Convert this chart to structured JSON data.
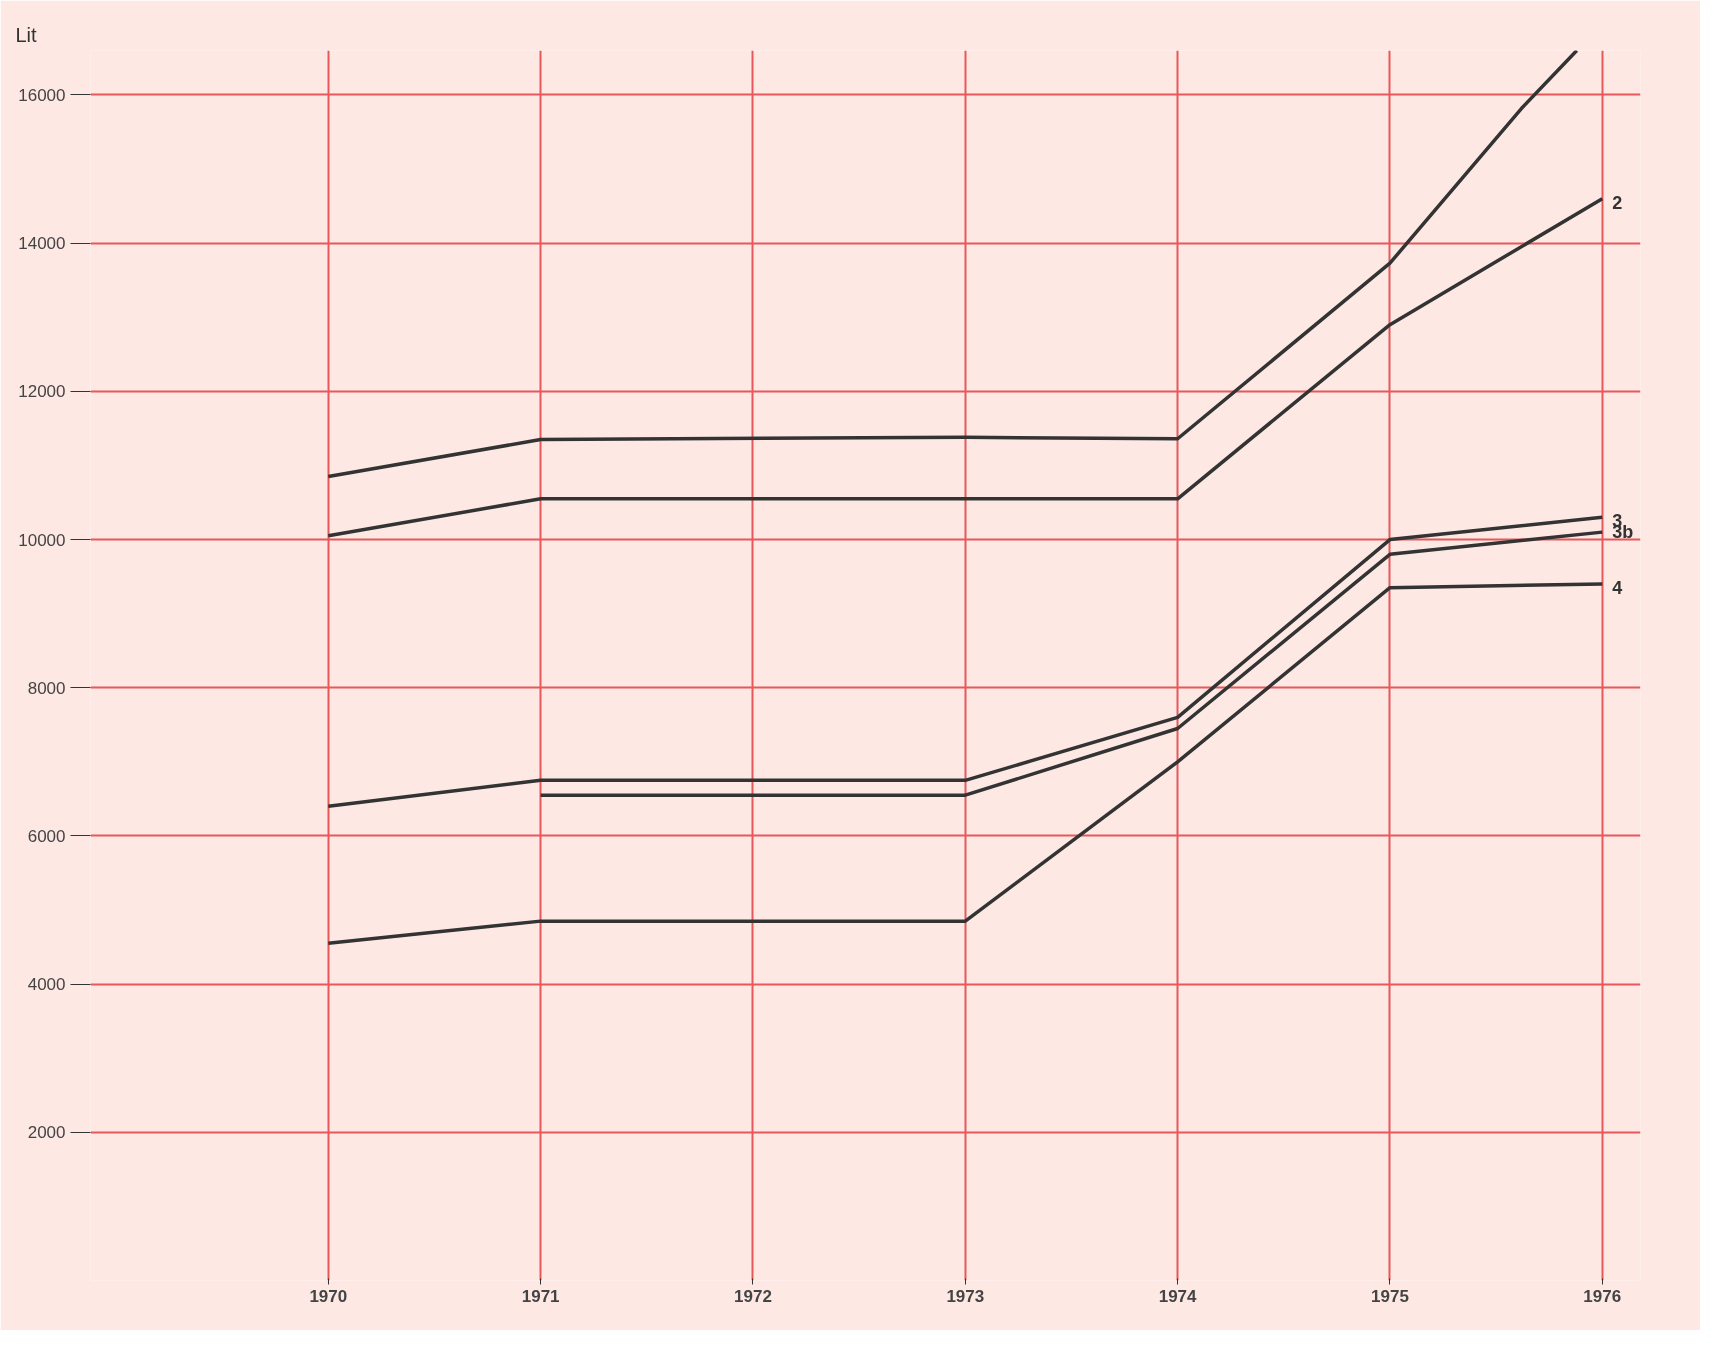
{
  "chart_data": {
    "type": "line",
    "ylabel": "Lit",
    "xlim": [
      1968.88,
      1976.18
    ],
    "ylim": [
      0,
      16600
    ],
    "xticks": [
      1970,
      1971,
      1972,
      1973,
      1974,
      1975,
      1976
    ],
    "yticks": [
      2000,
      4000,
      6000,
      8000,
      10000,
      12000,
      14000,
      16000
    ],
    "grid": true,
    "marker": "none",
    "line_style": "solid",
    "series": [
      {
        "color": "#333333",
        "x": [
          1970,
          1971,
          1973,
          1974,
          1975,
          1975.62,
          1975.88
        ],
        "values": [
          10850,
          11350,
          11380,
          11360,
          13730,
          15820,
          16600
        ]
      },
      {
        "name": "2",
        "color": "#333333",
        "x": [
          1970,
          1971,
          1973,
          1974,
          1975,
          1976
        ],
        "values": [
          10050,
          10550,
          10550,
          10550,
          12900,
          14600
        ]
      },
      {
        "name": "3",
        "color": "#333333",
        "x": [
          1970,
          1971,
          1973,
          1974,
          1975,
          1976
        ],
        "values": [
          6400,
          6750,
          6750,
          7600,
          10000,
          10300
        ]
      },
      {
        "name": "3b",
        "color": "#333333",
        "x": [
          1971,
          1973,
          1974,
          1975,
          1976
        ],
        "values": [
          6550,
          6550,
          7450,
          9800,
          10100
        ]
      },
      {
        "name": "4",
        "color": "#333333",
        "x": [
          1970,
          1971,
          1973,
          1974,
          1975,
          1976
        ],
        "values": [
          4550,
          4850,
          4850,
          7000,
          9350,
          9400
        ]
      }
    ]
  }
}
